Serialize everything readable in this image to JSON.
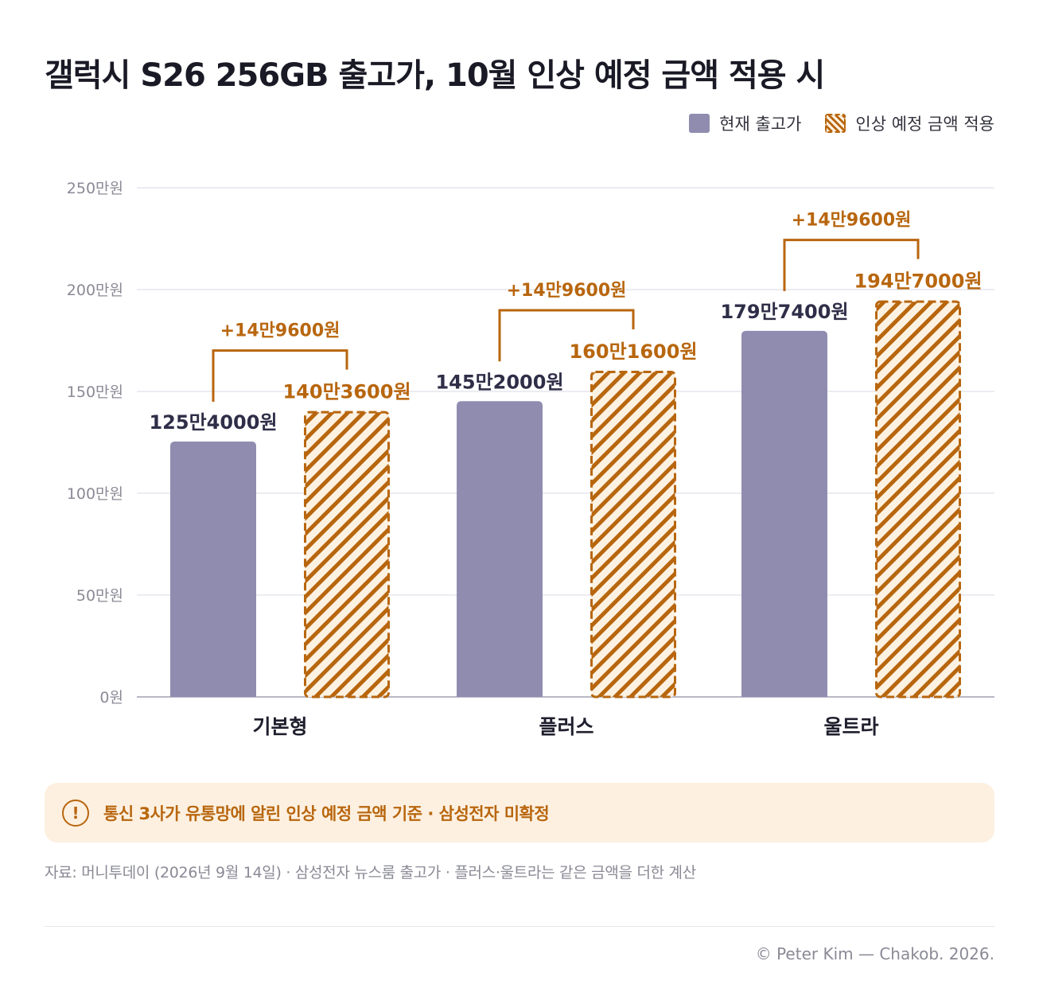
{
  "title": "갤럭시 S26 256GB 출고가, 10월 인상 예정 금액 적용 시",
  "legend": {
    "current": "현재 출고가",
    "raised": "인상 예정 금액 적용"
  },
  "colors": {
    "current": "#908cb0",
    "raised_stroke": "#b8660e",
    "raised_fill": "#fdf2e2",
    "label_dark": "#2e2e48",
    "label_accent": "#b8660e"
  },
  "chart_data": {
    "type": "bar",
    "categories": [
      "기본형",
      "플러스",
      "울트라"
    ],
    "series": [
      {
        "name": "현재 출고가",
        "values": [
          1254000,
          1452000,
          1797400
        ],
        "labels": [
          "125만4000원",
          "145만2000원",
          "179만7400원"
        ]
      },
      {
        "name": "인상 예정 금액 적용",
        "values": [
          1403600,
          1601600,
          1947000
        ],
        "labels": [
          "140만3600원",
          "160만1600원",
          "194만7000원"
        ]
      }
    ],
    "increase_labels": [
      "+14만9600원",
      "+14만9600원",
      "+14만9600원"
    ],
    "y_ticks": [
      {
        "value": 0,
        "label": "0원"
      },
      {
        "value": 500000,
        "label": "50만원"
      },
      {
        "value": 1000000,
        "label": "100만원"
      },
      {
        "value": 1500000,
        "label": "150만원"
      },
      {
        "value": 2000000,
        "label": "200만원"
      },
      {
        "value": 2500000,
        "label": "250만원"
      }
    ],
    "ylim": [
      0,
      2500000
    ],
    "grid": true,
    "legend_position": "top-right"
  },
  "notice": {
    "icon": "exclamation-icon",
    "text": "통신 3사가 유통망에 알린 인상 예정 금액 기준 · 삼성전자 미확정"
  },
  "source": "자료: 머니투데이 (2026년 9월 14일) · 삼성전자 뉴스룸 출고가 · 플러스·울트라는 같은 금액을 더한 계산",
  "copyright": "© Peter Kim — Chakob. 2026."
}
